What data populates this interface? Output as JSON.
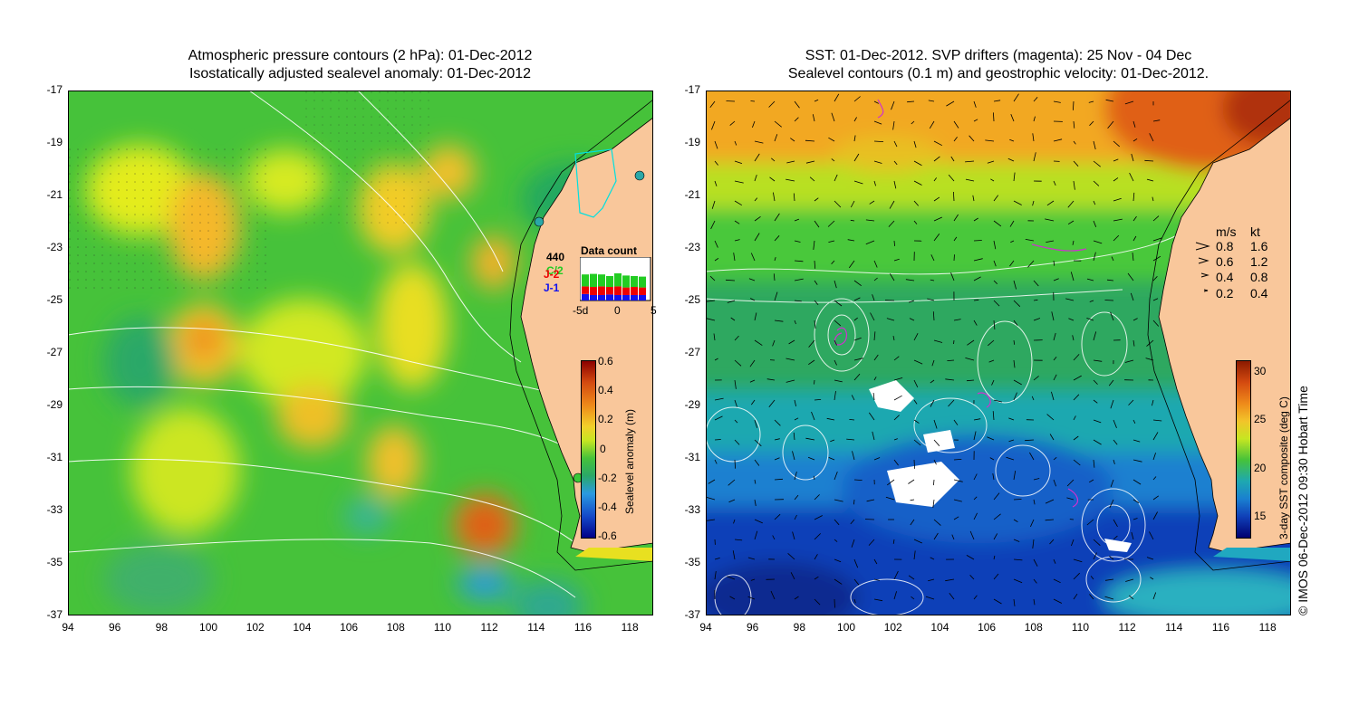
{
  "left_panel": {
    "title_line1": "Atmospheric pressure contours (2 hPa): 01-Dec-2012",
    "title_line2": "Isostatically adjusted sealevel anomaly: 01-Dec-2012",
    "colorbar": {
      "label": "Sealevel anomaly (m)",
      "ticks": [
        "0.6",
        "0.4",
        "0.2",
        "0",
        "-0.2",
        "-0.4",
        "-0.6"
      ]
    },
    "inset": {
      "title": "Data count",
      "max_label": "440",
      "series": [
        "C/2",
        "J-2",
        "J-1"
      ],
      "series_colors": [
        "#22cc22",
        "#ee0000",
        "#1111ee"
      ],
      "xticks": [
        "-5d",
        "0",
        "5"
      ]
    }
  },
  "right_panel": {
    "title_line1": "SST: 01-Dec-2012. SVP drifters (magenta): 25 Nov - 04 Dec",
    "title_line2": "Sealevel contours (0.1 m) and geostrophic velocity: 01-Dec-2012.",
    "colorbar": {
      "label": "3-day SST composite (deg C)",
      "ticks": [
        "30",
        "25",
        "20",
        "15"
      ]
    },
    "speed_legend": {
      "header_ms": "m/s",
      "header_kt": "kt",
      "rows": [
        {
          "ms": "0.8",
          "kt": "1.6"
        },
        {
          "ms": "0.6",
          "kt": "1.2"
        },
        {
          "ms": "0.4",
          "kt": "0.8"
        },
        {
          "ms": "0.2",
          "kt": "0.4"
        }
      ]
    }
  },
  "axes": {
    "lat_ticks": [
      "-17",
      "-19",
      "-21",
      "-23",
      "-25",
      "-27",
      "-29",
      "-31",
      "-33",
      "-35",
      "-37"
    ],
    "lon_ticks": [
      "94",
      "96",
      "98",
      "100",
      "102",
      "104",
      "106",
      "108",
      "110",
      "112",
      "114",
      "116",
      "118"
    ]
  },
  "credit": "© IMOS 06-Dec-2012 09:30 Hobart Time",
  "colors": {
    "land": "#f9c79b",
    "ocean_mid": "#48c83a"
  }
}
